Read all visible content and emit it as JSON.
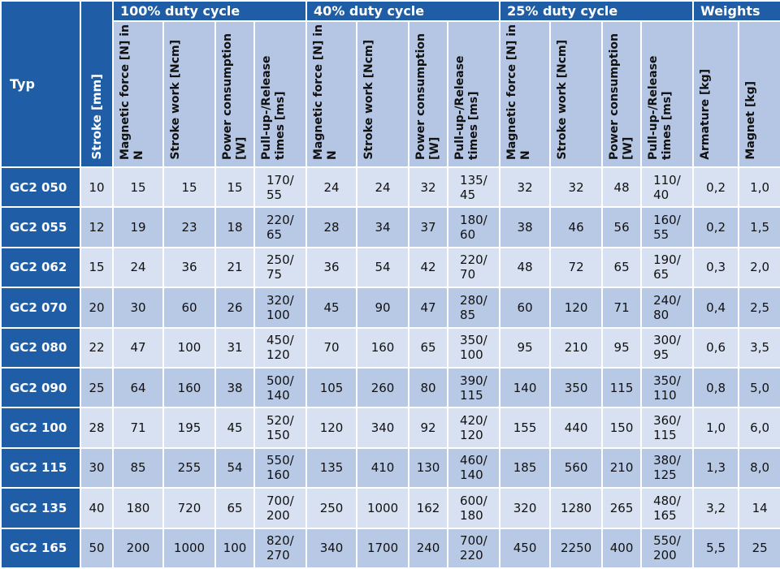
{
  "table": {
    "typ_header": "Typ",
    "stroke_header": "Stroke [mm]",
    "groups": [
      {
        "label": "100% duty cycle"
      },
      {
        "label": "40% duty cycle"
      },
      {
        "label": "25% duty cycle"
      },
      {
        "label": "Weights"
      }
    ],
    "duty_headers": {
      "magnetic_force": "Magnetic force [N] in N",
      "stroke_work": "Stroke work [Ncm]",
      "power_consumption": "Power consumption [W]",
      "pull_release": "Pull-up-/Release times [ms]"
    },
    "weight_headers": {
      "armature": "Armature [kg]",
      "magnet": "Magnet [kg]"
    },
    "rows": [
      {
        "typ": "GC2 050",
        "stroke": "10",
        "d100": [
          "15",
          "15",
          "15",
          "170/\n55"
        ],
        "d40": [
          "24",
          "24",
          "32",
          "135/\n45"
        ],
        "d25": [
          "32",
          "32",
          "48",
          "110/\n40"
        ],
        "w": [
          "0,2",
          "1,0"
        ]
      },
      {
        "typ": "GC2 055",
        "stroke": "12",
        "d100": [
          "19",
          "23",
          "18",
          "220/\n65"
        ],
        "d40": [
          "28",
          "34",
          "37",
          "180/\n60"
        ],
        "d25": [
          "38",
          "46",
          "56",
          "160/\n55"
        ],
        "w": [
          "0,2",
          "1,5"
        ]
      },
      {
        "typ": "GC2 062",
        "stroke": "15",
        "d100": [
          "24",
          "36",
          "21",
          "250/\n75"
        ],
        "d40": [
          "36",
          "54",
          "42",
          "220/\n70"
        ],
        "d25": [
          "48",
          "72",
          "65",
          "190/\n65"
        ],
        "w": [
          "0,3",
          "2,0"
        ]
      },
      {
        "typ": "GC2 070",
        "stroke": "20",
        "d100": [
          "30",
          "60",
          "26",
          "320/\n100"
        ],
        "d40": [
          "45",
          "90",
          "47",
          "280/\n85"
        ],
        "d25": [
          "60",
          "120",
          "71",
          "240/\n80"
        ],
        "w": [
          "0,4",
          "2,5"
        ]
      },
      {
        "typ": "GC2 080",
        "stroke": "22",
        "d100": [
          "47",
          "100",
          "31",
          "450/\n120"
        ],
        "d40": [
          "70",
          "160",
          "65",
          "350/\n100"
        ],
        "d25": [
          "95",
          "210",
          "95",
          "300/\n95"
        ],
        "w": [
          "0,6",
          "3,5"
        ]
      },
      {
        "typ": "GC2 090",
        "stroke": "25",
        "d100": [
          "64",
          "160",
          "38",
          "500/\n140"
        ],
        "d40": [
          "105",
          "260",
          "80",
          "390/\n115"
        ],
        "d25": [
          "140",
          "350",
          "115",
          "350/\n110"
        ],
        "w": [
          "0,8",
          "5,0"
        ]
      },
      {
        "typ": "GC2 100",
        "stroke": "28",
        "d100": [
          "71",
          "195",
          "45",
          "520/\n150"
        ],
        "d40": [
          "120",
          "340",
          "92",
          "420/\n120"
        ],
        "d25": [
          "155",
          "440",
          "150",
          "360/\n115"
        ],
        "w": [
          "1,0",
          "6,0"
        ]
      },
      {
        "typ": "GC2 115",
        "stroke": "30",
        "d100": [
          "85",
          "255",
          "54",
          "550/\n160"
        ],
        "d40": [
          "135",
          "410",
          "130",
          "460/\n140"
        ],
        "d25": [
          "185",
          "560",
          "210",
          "380/\n125"
        ],
        "w": [
          "1,3",
          "8,0"
        ]
      },
      {
        "typ": "GC2 135",
        "stroke": "40",
        "d100": [
          "180",
          "720",
          "65",
          "700/\n200"
        ],
        "d40": [
          "250",
          "1000",
          "162",
          "600/\n180"
        ],
        "d25": [
          "320",
          "1280",
          "265",
          "480/\n165"
        ],
        "w": [
          "3,2",
          "14"
        ]
      },
      {
        "typ": "GC2 165",
        "stroke": "50",
        "d100": [
          "200",
          "1000",
          "100",
          "820/\n270"
        ],
        "d40": [
          "340",
          "1700",
          "240",
          "700/\n220"
        ],
        "d25": [
          "450",
          "2250",
          "400",
          "550/\n200"
        ],
        "w": [
          "5,5",
          "25"
        ]
      }
    ]
  },
  "colors": {
    "header_dark": "#1f5ea7",
    "header_light": "#b5c6e4",
    "row_light": "#d7e1f1",
    "row_dark": "#b8c9e6"
  }
}
